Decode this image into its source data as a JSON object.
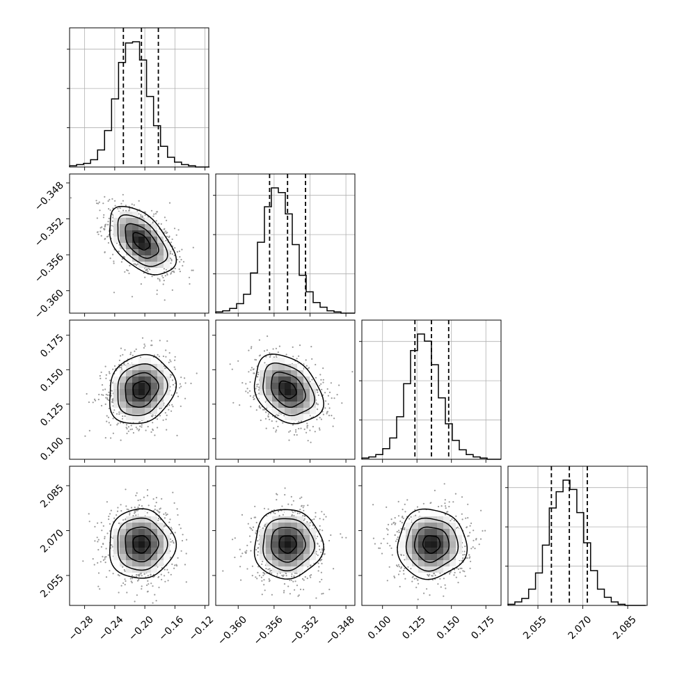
{
  "chart_data": {
    "type": "corner",
    "title": "",
    "colors": {
      "line": "#000000",
      "scatter": "#9a9a9a",
      "grid": "#b0b0b0"
    },
    "grid": true,
    "params": [
      {
        "range": [
          -0.3,
          -0.115
        ],
        "ticks": [
          -0.28,
          -0.24,
          -0.2,
          -0.16,
          -0.12
        ],
        "tick_labels": [
          "−0.28",
          "−0.24",
          "−0.20",
          "−0.16",
          "−0.12"
        ],
        "quantiles": [
          -0.2285,
          -0.2045,
          -0.182
        ],
        "hist_bin_start": -0.3,
        "hist_bin_width": 0.0093,
        "hist_counts": [
          1,
          2,
          3,
          6,
          14,
          30,
          56,
          86,
          102,
          103,
          88,
          58,
          34,
          17,
          8,
          4,
          2,
          1,
          0,
          0
        ],
        "mean": -0.205,
        "sd": 0.022
      },
      {
        "range": [
          -0.3625,
          -0.347
        ],
        "ticks": [
          -0.36,
          -0.356,
          -0.352,
          -0.348
        ],
        "tick_labels": [
          "−0.360",
          "−0.356",
          "−0.352",
          "−0.348"
        ],
        "quantiles": [
          -0.3565,
          -0.3545,
          -0.3525
        ],
        "hist_bin_start": -0.3625,
        "hist_bin_width": 0.000775,
        "hist_counts": [
          1,
          2,
          4,
          8,
          16,
          34,
          60,
          90,
          106,
          102,
          84,
          58,
          32,
          18,
          9,
          5,
          2,
          1,
          0,
          0
        ],
        "mean": -0.3545,
        "sd": 0.0019
      },
      {
        "range": [
          0.085,
          0.186
        ],
        "ticks": [
          0.1,
          0.125,
          0.15,
          0.175
        ],
        "tick_labels": [
          "0.100",
          "0.125",
          "0.150",
          "0.175"
        ],
        "quantiles": [
          0.1235,
          0.1355,
          0.148
        ],
        "hist_bin_start": 0.085,
        "hist_bin_width": 0.00505,
        "hist_counts": [
          1,
          2,
          4,
          9,
          18,
          36,
          64,
          92,
          106,
          100,
          80,
          52,
          30,
          16,
          8,
          4,
          2,
          1,
          0,
          0
        ],
        "mean": 0.1355,
        "sd": 0.0125
      },
      {
        "range": [
          2.045,
          2.0915
        ],
        "ticks": [
          2.055,
          2.07,
          2.085
        ],
        "tick_labels": [
          "2.055",
          "2.070",
          "2.085"
        ],
        "quantiles": [
          2.0595,
          2.0655,
          2.0715
        ],
        "hist_bin_start": 2.045,
        "hist_bin_width": 0.0023,
        "hist_counts": [
          1,
          3,
          6,
          14,
          28,
          52,
          84,
          98,
          108,
          100,
          80,
          54,
          30,
          14,
          7,
          3,
          1,
          0,
          0,
          0
        ],
        "mean": 2.0655,
        "sd": 0.0058
      }
    ],
    "pairs": [
      {
        "x": 0,
        "y": 1,
        "rho": -0.5
      },
      {
        "x": 0,
        "y": 2,
        "rho": 0.15
      },
      {
        "x": 1,
        "y": 2,
        "rho": -0.3
      },
      {
        "x": 0,
        "y": 3,
        "rho": 0.0
      },
      {
        "x": 1,
        "y": 3,
        "rho": 0.0
      },
      {
        "x": 2,
        "y": 3,
        "rho": 0.0
      }
    ]
  }
}
